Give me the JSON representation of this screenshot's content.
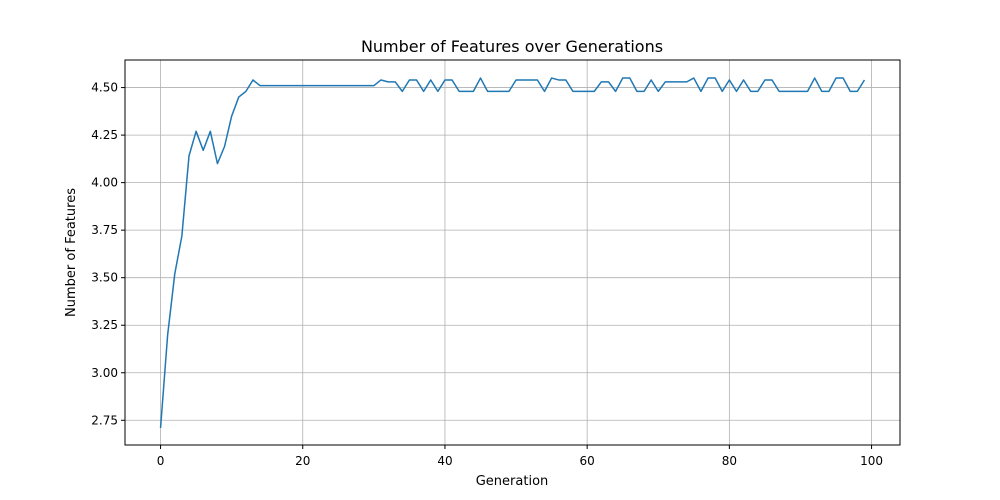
{
  "chart_data": {
    "type": "line",
    "title": "Number of Features over Generations",
    "xlabel": "Generation",
    "ylabel": "Number of Features",
    "xlim": [
      -5,
      104
    ],
    "ylim": [
      2.62,
      4.645
    ],
    "xticks": [
      0,
      20,
      40,
      60,
      80,
      100
    ],
    "yticks": [
      2.75,
      3.0,
      3.25,
      3.5,
      3.75,
      4.0,
      4.25,
      4.5
    ],
    "grid": true,
    "line_color": "#1f77b4",
    "series": [
      {
        "x": [
          0,
          1,
          2,
          3,
          4,
          5,
          6,
          7,
          8,
          9,
          10,
          11,
          12,
          13,
          14,
          15,
          16,
          17,
          18,
          19,
          20,
          21,
          22,
          23,
          24,
          25,
          26,
          27,
          28,
          29,
          30,
          31,
          32,
          33,
          34,
          35,
          36,
          37,
          38,
          39,
          40,
          41,
          42,
          43,
          44,
          45,
          46,
          47,
          48,
          49,
          50,
          51,
          52,
          53,
          54,
          55,
          56,
          57,
          58,
          59,
          60,
          61,
          62,
          63,
          64,
          65,
          66,
          67,
          68,
          69,
          70,
          71,
          72,
          73,
          74,
          75,
          76,
          77,
          78,
          79,
          80,
          81,
          82,
          83,
          84,
          85,
          86,
          87,
          88,
          89,
          90,
          91,
          92,
          93,
          94,
          95,
          96,
          97,
          98,
          99
        ],
        "values": [
          2.71,
          3.2,
          3.52,
          3.72,
          4.14,
          4.27,
          4.17,
          4.27,
          4.1,
          4.19,
          4.35,
          4.45,
          4.48,
          4.54,
          4.51,
          4.51,
          4.51,
          4.51,
          4.51,
          4.51,
          4.51,
          4.51,
          4.51,
          4.51,
          4.51,
          4.51,
          4.51,
          4.51,
          4.51,
          4.51,
          4.51,
          4.54,
          4.53,
          4.53,
          4.48,
          4.54,
          4.54,
          4.48,
          4.54,
          4.48,
          4.54,
          4.54,
          4.48,
          4.48,
          4.48,
          4.55,
          4.48,
          4.48,
          4.48,
          4.48,
          4.54,
          4.54,
          4.54,
          4.54,
          4.48,
          4.55,
          4.54,
          4.54,
          4.48,
          4.48,
          4.48,
          4.48,
          4.53,
          4.53,
          4.48,
          4.55,
          4.55,
          4.48,
          4.48,
          4.54,
          4.48,
          4.53,
          4.53,
          4.53,
          4.53,
          4.55,
          4.48,
          4.55,
          4.55,
          4.48,
          4.54,
          4.48,
          4.54,
          4.48,
          4.48,
          4.54,
          4.54,
          4.48,
          4.48,
          4.48,
          4.48,
          4.48,
          4.55,
          4.48,
          4.48,
          4.55,
          4.55,
          4.48,
          4.48,
          4.54
        ]
      }
    ]
  }
}
